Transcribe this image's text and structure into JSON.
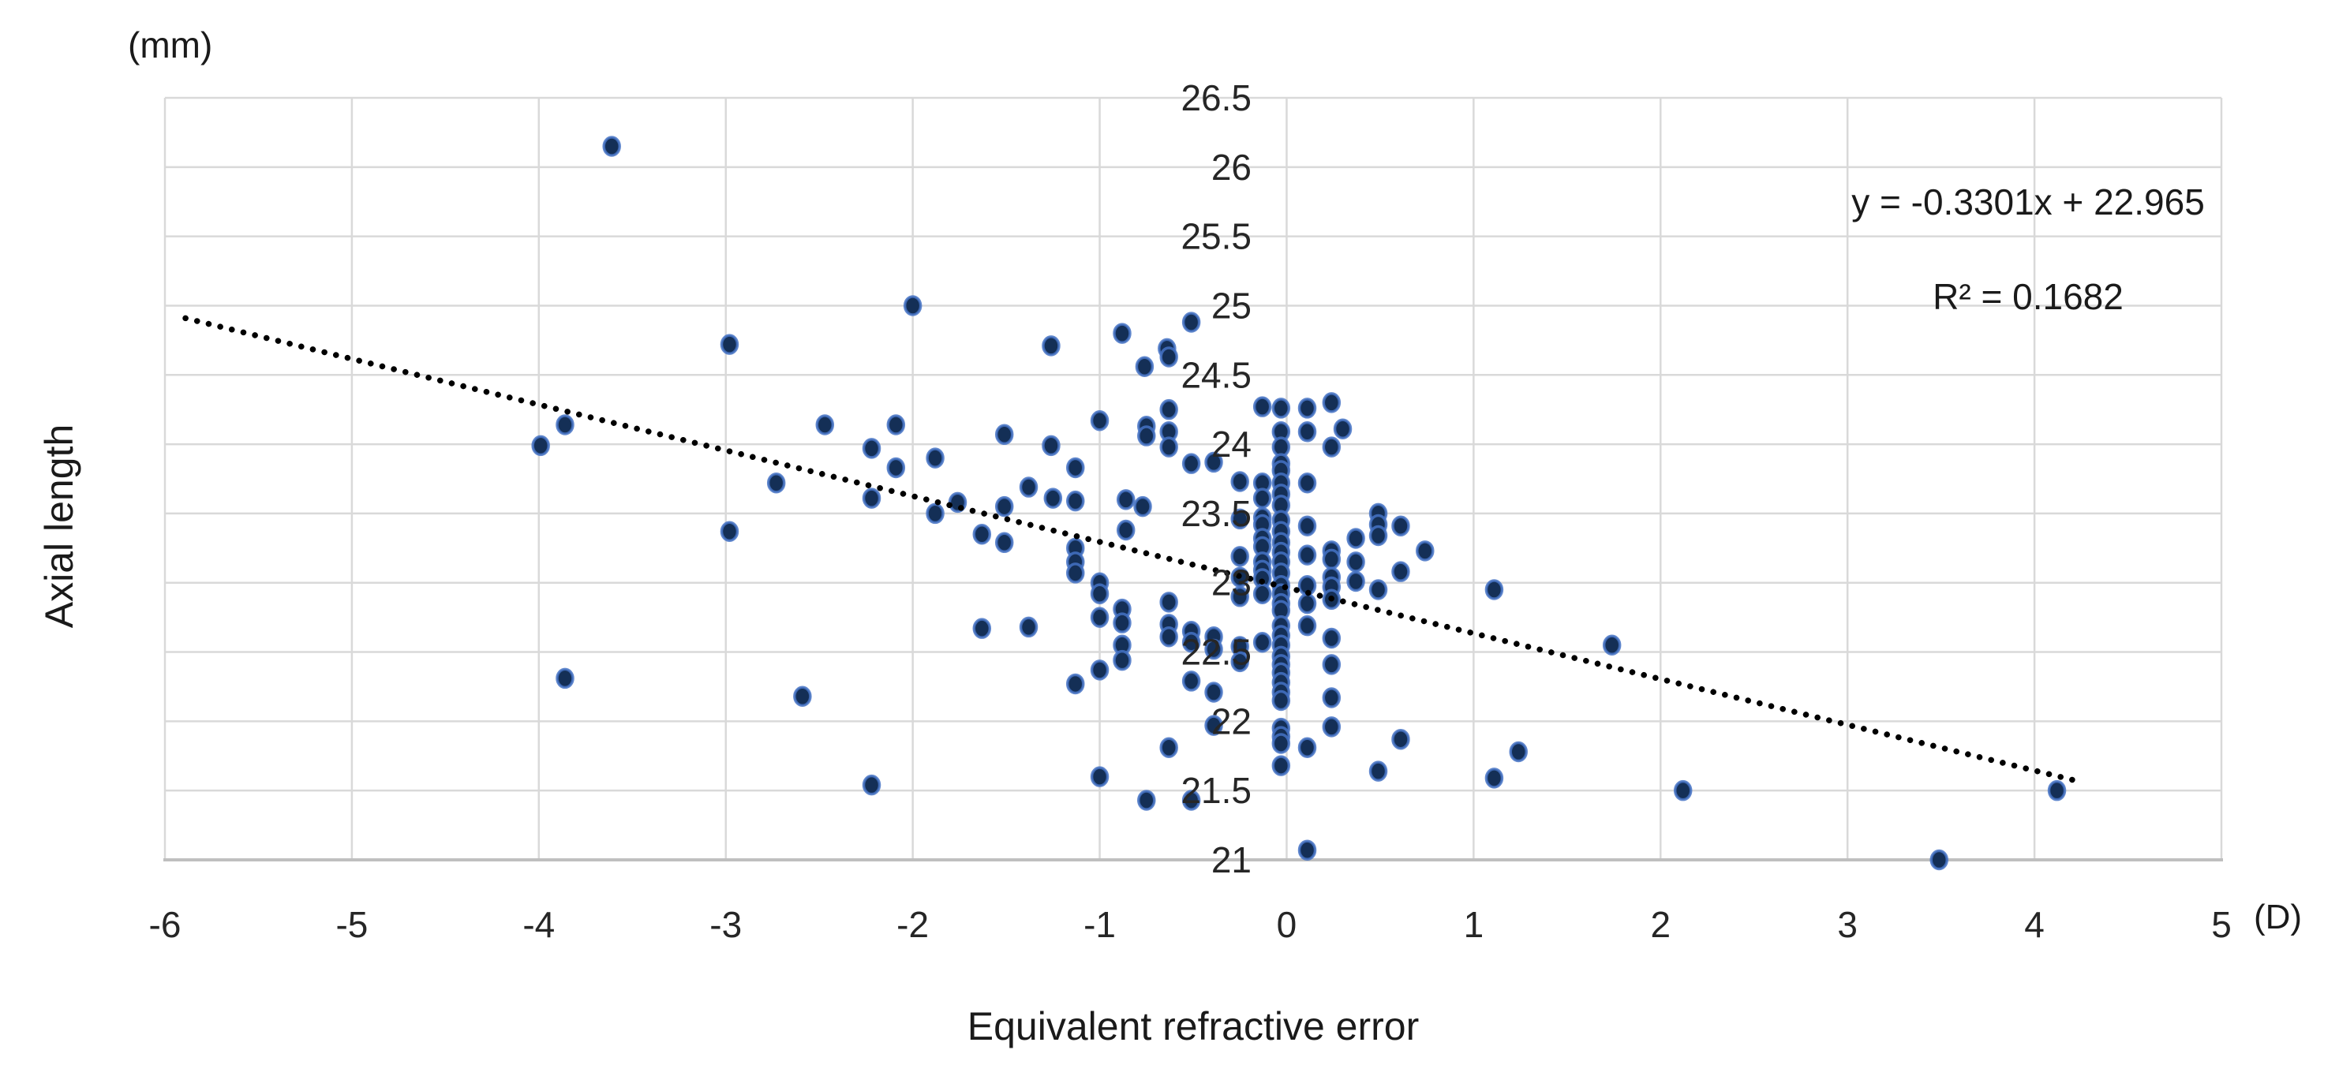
{
  "figure": {
    "corner_unit_label": "(mm)",
    "x_unit_label": "(D)",
    "y_axis_title": "Axial length",
    "x_axis_title": "Equivalent refractive error",
    "equation_line1": "y = -0.3301x + 22.965",
    "equation_line2": "R² = 0.1682"
  },
  "colors": {
    "marker_fill": "#142F56",
    "marker_halo": "#4472C4",
    "trendline": "#000000",
    "gridline": "#D9D9D9",
    "axis_line": "#BFBFBF",
    "tick_text": "#262626"
  },
  "chart_data": {
    "type": "scatter",
    "title": "",
    "xlabel": "Equivalent refractive error (D)",
    "ylabel": "Axial length (mm)",
    "xlim": [
      -6,
      5
    ],
    "ylim": [
      21,
      26.5
    ],
    "grid": true,
    "legend": "none",
    "x_ticks": [
      -6,
      -5,
      -4,
      -3,
      -2,
      -1,
      0,
      1,
      2,
      3,
      4,
      5
    ],
    "x_tick_labels": [
      "-6",
      "-5",
      "-4",
      "-3",
      "-2",
      "-1",
      "0",
      "1",
      "2",
      "3",
      "4",
      "5"
    ],
    "y_ticks": [
      21,
      21.5,
      22,
      22.5,
      23,
      23.5,
      24,
      24.5,
      25,
      25.5,
      26,
      26.5
    ],
    "y_tick_labels": [
      "21",
      "21.5",
      "22",
      "22.5",
      "23",
      "23.5",
      "24",
      "24.5",
      "25",
      "25.5",
      "26",
      "26.5"
    ],
    "trendline": {
      "slope": -0.3301,
      "intercept": 22.965,
      "r_squared": 0.1682,
      "x_start": -5.89,
      "x_end": 4.24,
      "style": "dotted"
    },
    "points": [
      [
        -3.61,
        26.15
      ],
      [
        -2.98,
        24.72
      ],
      [
        -2.0,
        25.0
      ],
      [
        -3.86,
        24.14
      ],
      [
        -3.99,
        23.99
      ],
      [
        -2.47,
        24.14
      ],
      [
        -2.09,
        24.14
      ],
      [
        -2.22,
        23.97
      ],
      [
        -2.09,
        23.83
      ],
      [
        -2.73,
        23.72
      ],
      [
        -2.22,
        23.61
      ],
      [
        -2.98,
        23.37
      ],
      [
        -3.86,
        22.31
      ],
      [
        -2.59,
        22.18
      ],
      [
        -2.22,
        21.54
      ],
      [
        -0.51,
        24.88
      ],
      [
        -0.88,
        24.8
      ],
      [
        -1.26,
        24.71
      ],
      [
        -0.64,
        24.69
      ],
      [
        -0.76,
        24.56
      ],
      [
        -0.63,
        24.63
      ],
      [
        -1.51,
        24.07
      ],
      [
        -1.26,
        23.99
      ],
      [
        -1.0,
        24.17
      ],
      [
        -0.75,
        24.13
      ],
      [
        -0.75,
        24.06
      ],
      [
        -0.63,
        24.25
      ],
      [
        -0.63,
        24.09
      ],
      [
        -0.63,
        23.98
      ],
      [
        -1.88,
        23.9
      ],
      [
        -1.13,
        23.83
      ],
      [
        -1.38,
        23.69
      ],
      [
        -0.51,
        23.86
      ],
      [
        -0.39,
        23.87
      ],
      [
        -1.25,
        23.61
      ],
      [
        -1.13,
        23.59
      ],
      [
        -1.76,
        23.58
      ],
      [
        -1.88,
        23.5
      ],
      [
        -1.51,
        23.55
      ],
      [
        -1.63,
        23.35
      ],
      [
        -1.51,
        23.29
      ],
      [
        -0.86,
        23.6
      ],
      [
        -0.77,
        23.55
      ],
      [
        -0.86,
        23.38
      ],
      [
        -1.13,
        23.25
      ],
      [
        -1.13,
        23.15
      ],
      [
        -1.13,
        23.07
      ],
      [
        -1.0,
        23.0
      ],
      [
        -1.0,
        22.92
      ],
      [
        -1.63,
        22.67
      ],
      [
        -1.38,
        22.68
      ],
      [
        -1.0,
        22.75
      ],
      [
        -1.0,
        22.37
      ],
      [
        -1.13,
        22.27
      ],
      [
        -0.88,
        22.81
      ],
      [
        -0.88,
        22.71
      ],
      [
        -0.88,
        22.55
      ],
      [
        -0.88,
        22.44
      ],
      [
        -0.63,
        22.86
      ],
      [
        -0.63,
        22.7
      ],
      [
        -0.63,
        22.61
      ],
      [
        -0.51,
        22.65
      ],
      [
        -0.51,
        22.57
      ],
      [
        -0.39,
        22.61
      ],
      [
        -0.39,
        22.52
      ],
      [
        -0.51,
        22.29
      ],
      [
        -0.39,
        22.21
      ],
      [
        -0.39,
        21.97
      ],
      [
        -0.63,
        21.81
      ],
      [
        -1.0,
        21.6
      ],
      [
        -0.75,
        21.43
      ],
      [
        -0.51,
        21.43
      ],
      [
        -0.25,
        23.73
      ],
      [
        -0.25,
        23.46
      ],
      [
        -0.25,
        23.19
      ],
      [
        -0.25,
        23.04
      ],
      [
        -0.25,
        22.9
      ],
      [
        -0.25,
        22.54
      ],
      [
        -0.25,
        22.43
      ],
      [
        -0.13,
        24.27
      ],
      [
        -0.13,
        23.72
      ],
      [
        -0.13,
        23.61
      ],
      [
        -0.13,
        23.47
      ],
      [
        -0.13,
        23.42
      ],
      [
        -0.13,
        23.32
      ],
      [
        -0.13,
        23.26
      ],
      [
        -0.13,
        23.15
      ],
      [
        -0.13,
        23.09
      ],
      [
        -0.13,
        23.03
      ],
      [
        -0.13,
        22.92
      ],
      [
        -0.13,
        22.57
      ],
      [
        -0.03,
        24.26
      ],
      [
        -0.03,
        24.09
      ],
      [
        -0.03,
        23.98
      ],
      [
        -0.03,
        23.86
      ],
      [
        -0.03,
        23.81
      ],
      [
        -0.03,
        23.72
      ],
      [
        -0.03,
        23.64
      ],
      [
        -0.03,
        23.56
      ],
      [
        -0.03,
        23.45
      ],
      [
        -0.03,
        23.37
      ],
      [
        -0.03,
        23.29
      ],
      [
        -0.03,
        23.22
      ],
      [
        -0.03,
        23.15
      ],
      [
        -0.03,
        23.07
      ],
      [
        -0.03,
        22.98
      ],
      [
        -0.03,
        22.92
      ],
      [
        -0.03,
        22.85
      ],
      [
        -0.03,
        22.8
      ],
      [
        -0.03,
        22.69
      ],
      [
        -0.03,
        22.62
      ],
      [
        -0.03,
        22.55
      ],
      [
        -0.03,
        22.47
      ],
      [
        -0.03,
        22.41
      ],
      [
        -0.03,
        22.35
      ],
      [
        -0.03,
        22.28
      ],
      [
        -0.03,
        22.21
      ],
      [
        -0.03,
        22.15
      ],
      [
        -0.03,
        21.95
      ],
      [
        -0.03,
        21.89
      ],
      [
        -0.03,
        21.84
      ],
      [
        -0.03,
        21.68
      ],
      [
        0.11,
        24.26
      ],
      [
        0.11,
        24.09
      ],
      [
        0.11,
        23.72
      ],
      [
        0.11,
        23.41
      ],
      [
        0.11,
        23.2
      ],
      [
        0.11,
        22.98
      ],
      [
        0.11,
        22.85
      ],
      [
        0.11,
        22.69
      ],
      [
        0.11,
        21.81
      ],
      [
        0.11,
        21.07
      ],
      [
        0.24,
        24.3
      ],
      [
        0.24,
        23.98
      ],
      [
        0.24,
        23.23
      ],
      [
        0.24,
        23.17
      ],
      [
        0.24,
        23.04
      ],
      [
        0.24,
        22.97
      ],
      [
        0.24,
        22.88
      ],
      [
        0.24,
        22.6
      ],
      [
        0.24,
        22.41
      ],
      [
        0.24,
        22.17
      ],
      [
        0.24,
        21.96
      ],
      [
        0.3,
        24.11
      ],
      [
        0.37,
        23.32
      ],
      [
        0.37,
        23.15
      ],
      [
        0.37,
        23.01
      ],
      [
        0.49,
        23.5
      ],
      [
        0.49,
        23.42
      ],
      [
        0.49,
        23.34
      ],
      [
        0.49,
        22.95
      ],
      [
        0.49,
        21.64
      ],
      [
        0.61,
        23.41
      ],
      [
        0.61,
        23.08
      ],
      [
        0.61,
        21.87
      ],
      [
        0.74,
        23.23
      ],
      [
        1.11,
        22.95
      ],
      [
        1.11,
        21.59
      ],
      [
        1.24,
        21.78
      ],
      [
        1.74,
        22.55
      ],
      [
        2.12,
        21.5
      ],
      [
        3.49,
        21.0
      ],
      [
        4.12,
        21.5
      ]
    ]
  }
}
